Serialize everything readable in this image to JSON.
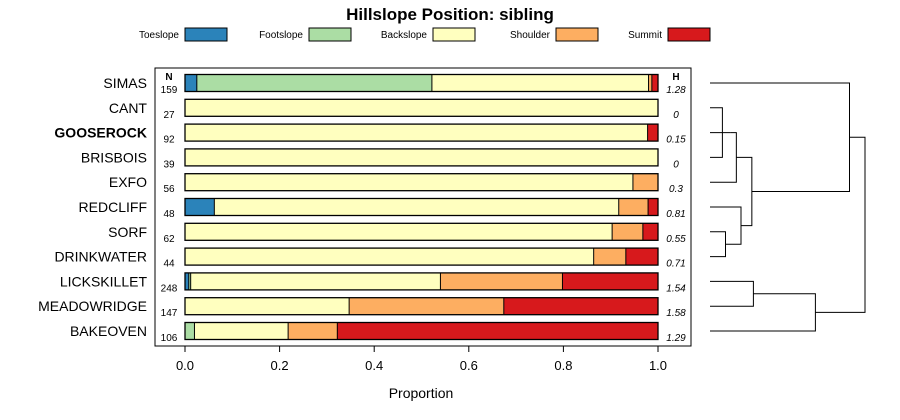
{
  "chart_data": {
    "type": "bar",
    "orientation": "horizontal",
    "stacked": true,
    "title": "Hillslope Position: sibling",
    "xlabel": "Proportion",
    "ylabel": "",
    "xlim": [
      0,
      1
    ],
    "x_ticks": [
      "0.0",
      "0.2",
      "0.4",
      "0.6",
      "0.8",
      "1.0"
    ],
    "x_tick_values": [
      0,
      0.2,
      0.4,
      0.6,
      0.8,
      1.0
    ],
    "n_header": "N",
    "h_header": "H",
    "legend_placement": "top",
    "categories": [
      "SIMAS",
      "CANT",
      "GOOSEROCK",
      "BRISBOIS",
      "EXFO",
      "REDCLIFF",
      "SORF",
      "DRINKWATER",
      "LICKSKILLET",
      "MEADOWRIDGE",
      "BAKEOVEN"
    ],
    "highlighted_category": "GOOSEROCK",
    "n_values": [
      "159",
      "27",
      "92",
      "39",
      "56",
      "48",
      "62",
      "44",
      "248",
      "147",
      "106"
    ],
    "h_values": [
      "1.28",
      "0",
      "0.15",
      "0",
      "0.3",
      "0.81",
      "0.55",
      "0.71",
      "1.54",
      "1.58",
      "1.29"
    ],
    "series": [
      {
        "name": "Toeslope",
        "color": "#2b83ba",
        "values": [
          0.025,
          0,
          0,
          0,
          0,
          0.062,
          0,
          0,
          0.008,
          0,
          0
        ]
      },
      {
        "name": "Footslope",
        "color": "#abdda4",
        "values": [
          0.497,
          0,
          0,
          0,
          0,
          0,
          0,
          0,
          0.004,
          0,
          0.02
        ]
      },
      {
        "name": "Backslope",
        "color": "#ffffbf",
        "values": [
          0.458,
          1.0,
          0.978,
          1.0,
          0.947,
          0.855,
          0.903,
          0.864,
          0.528,
          0.347,
          0.198
        ]
      },
      {
        "name": "Shoulder",
        "color": "#fdae61",
        "values": [
          0.007,
          0,
          0,
          0,
          0.053,
          0.062,
          0.065,
          0.068,
          0.258,
          0.327,
          0.104
        ]
      },
      {
        "name": "Summit",
        "color": "#d7191c",
        "values": [
          0.013,
          0,
          0.022,
          0,
          0,
          0.021,
          0.032,
          0.068,
          0.202,
          0.326,
          0.678
        ]
      }
    ],
    "dendrogram": {
      "linkage_order_leaves": [
        "SIMAS",
        "CANT",
        "GOOSEROCK",
        "BRISBOIS",
        "EXFO",
        "REDCLIFF",
        "SORF",
        "DRINKWATER",
        "LICKSKILLET",
        "MEADOWRIDGE",
        "BAKEOVEN"
      ],
      "merges": [
        {
          "a": "CANT",
          "b": "BRISBOIS",
          "height": 0.08
        },
        {
          "a": "SORF",
          "b": "DRINKWATER",
          "height": 0.1
        },
        {
          "a": "CANT+BRISBOIS",
          "b": "GOOSEROCK",
          "height": 0.13
        },
        {
          "a": "CANT+BRISBOIS+GOOSEROCK",
          "b": "EXFO",
          "height": 0.17
        },
        {
          "a": "REDCLIFF",
          "b": "SORF+DRINKWATER",
          "height": 0.2
        },
        {
          "a": "CANT+BRISBOIS+GOOSEROCK+EXFO",
          "b": "REDCLIFF+SORF+DRINKWATER",
          "height": 0.27
        },
        {
          "a": "LICKSKILLET",
          "b": "MEADOWRIDGE",
          "height": 0.28
        },
        {
          "a": "LICKSKILLET+MEADOWRIDGE",
          "b": "BAKEOVEN",
          "height": 0.68
        },
        {
          "a": "SIMAS",
          "b": "CANT+BRISBOIS+GOOSEROCK+EXFO+REDCLIFF+SORF+DRINKWATER",
          "height": 0.9
        },
        {
          "a": "SIMAS+CANT+BRISBOIS+GOOSEROCK+EXFO+REDCLIFF+SORF+DRINKWATER",
          "b": "LICKSKILLET+MEADOWRIDGE+BAKEOVEN",
          "height": 1.0
        }
      ]
    }
  }
}
